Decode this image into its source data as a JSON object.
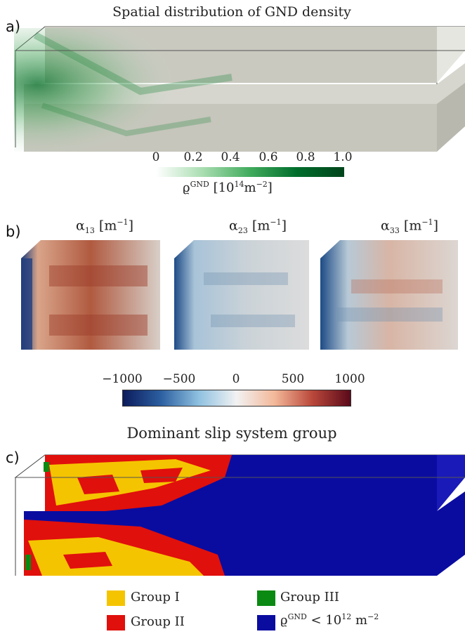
{
  "panel_a": {
    "label": "a)",
    "title": "Spatial distribution of GND density",
    "colorbar": {
      "ticks": [
        "0",
        "0.2",
        "0.4",
        "0.6",
        "0.8",
        "1.0"
      ],
      "label_prefix": "ϱ",
      "label_sup": "GND",
      "label_units": "[10",
      "label_units_sup": "14",
      "label_units_tail": "m",
      "label_units_tail_sup": "−2",
      "label_close": "]",
      "color_low": "#ffffff",
      "color_high": "#00441b"
    }
  },
  "panel_b": {
    "label": "b)",
    "subplots": [
      {
        "symbol": "α",
        "sub": "13",
        "units": "[m",
        "units_sup": "−1",
        "close": "]"
      },
      {
        "symbol": "α",
        "sub": "23",
        "units": "[m",
        "units_sup": "−1",
        "close": "]"
      },
      {
        "symbol": "α",
        "sub": "33",
        "units": "[m",
        "units_sup": "−1",
        "close": "]"
      }
    ],
    "colorbar": {
      "ticks": [
        "−1000",
        "−500",
        "0",
        "500",
        "1000"
      ],
      "color_low": "#0c1b5c",
      "color_mid": "#f2f2f2",
      "color_high": "#5a0a1a"
    }
  },
  "panel_c": {
    "label": "c)",
    "title": "Dominant slip system group",
    "legend": [
      {
        "name": "Group I",
        "color": "#f5c400"
      },
      {
        "name": "Group III",
        "color": "#0a8a12"
      },
      {
        "name": "Group II",
        "color": "#e0100c"
      },
      {
        "prefix": "ϱ",
        "sup": "GND",
        "text": " < 10",
        "sup2": "12",
        "tail": " m",
        "sup3": "−2",
        "color": "#0a0ca0"
      }
    ]
  }
}
